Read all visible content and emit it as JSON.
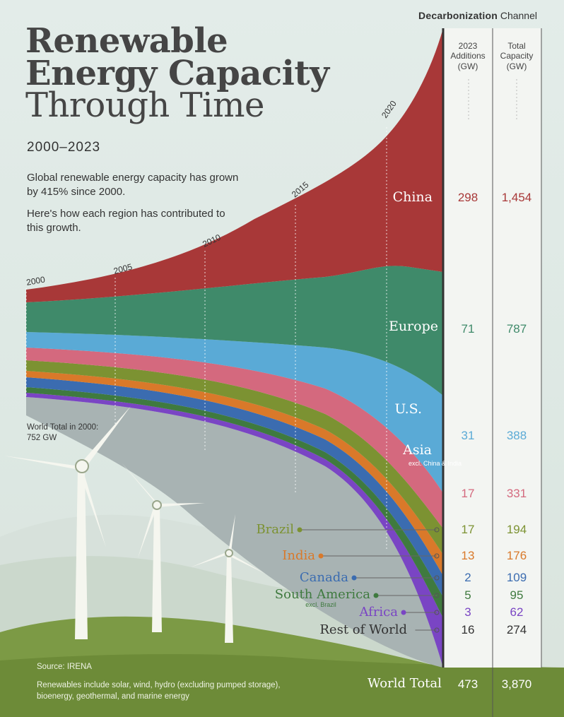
{
  "brand": {
    "bold": "Decarbonization",
    "rest": " Channel"
  },
  "title": {
    "line1": "Renewable",
    "line2": "Energy Capacity",
    "line3": "Through Time"
  },
  "subtitle": "2000–2023",
  "description": {
    "p1": "Global renewable energy capacity has grown by 415% since 2000.",
    "p2": "Here's how each region has contributed to this growth."
  },
  "world_total_2000": "World Total in 2000: 752 GW",
  "source": "Source: IRENA",
  "note": "Renewables include solar, wind, hydro (excluding pumped storage), bioenergy, geothermal, and marine energy",
  "table": {
    "col1_header": "2023 Additions (GW)",
    "col2_header": "Total Capacity (GW)"
  },
  "chart_data": {
    "type": "area",
    "title": "Renewable Energy Capacity Through Time",
    "subtitle": "2000–2023",
    "x_ticks": [
      "2000",
      "2005",
      "2010",
      "2015",
      "2020"
    ],
    "x_range": [
      2000,
      2023
    ],
    "series": [
      {
        "name": "China",
        "additions_2023": "298",
        "total_2023": "1,454",
        "color": "#a83838"
      },
      {
        "name": "Europe",
        "additions_2023": "71",
        "total_2023": "787",
        "color": "#3f8a6a"
      },
      {
        "name": "U.S.",
        "additions_2023": "31",
        "total_2023": "388",
        "color": "#5aaad6"
      },
      {
        "name": "Asia",
        "sub": "excl. China & India",
        "additions_2023": "17",
        "total_2023": "331",
        "color": "#d4697e"
      },
      {
        "name": "Brazil",
        "additions_2023": "17",
        "total_2023": "194",
        "color": "#7c9232"
      },
      {
        "name": "India",
        "additions_2023": "13",
        "total_2023": "176",
        "color": "#d9792a"
      },
      {
        "name": "Canada",
        "additions_2023": "2",
        "total_2023": "109",
        "color": "#3b6cb0"
      },
      {
        "name": "South America",
        "sub": "excl. Brazil",
        "additions_2023": "5",
        "total_2023": "95",
        "color": "#3f7a3f"
      },
      {
        "name": "Africa",
        "additions_2023": "3",
        "total_2023": "62",
        "color": "#7a45c4"
      },
      {
        "name": "Rest of World",
        "additions_2023": "16",
        "total_2023": "274",
        "color": "#a8b3b3"
      }
    ],
    "world_total": {
      "label": "World Total",
      "additions_2023": "473",
      "total_2023": "3,870"
    },
    "world_total_2000": 752,
    "growth_since_2000_pct": 415
  }
}
